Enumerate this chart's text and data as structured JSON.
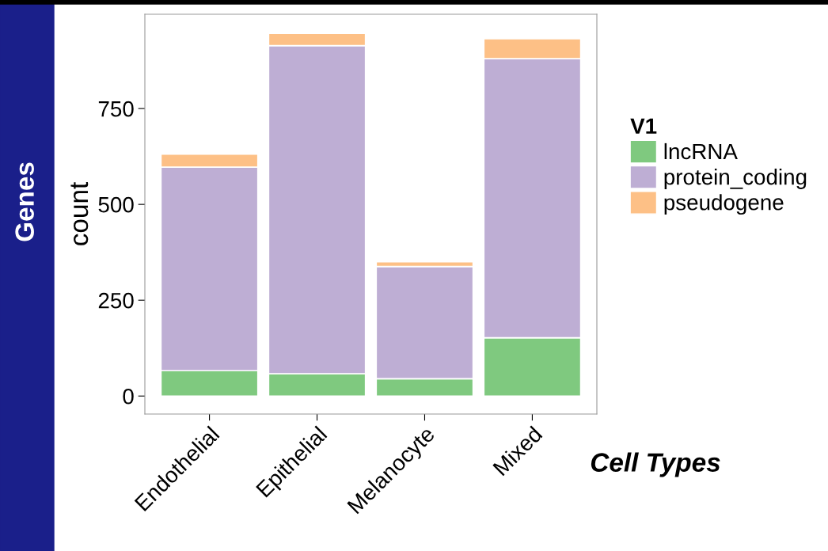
{
  "chart_data": {
    "type": "bar",
    "stacked": true,
    "ylabel": "count",
    "legend_title": "V1",
    "categories": [
      "Endothelial",
      "Epithelial",
      "Melanocyte",
      "Mixed"
    ],
    "series": [
      {
        "name": "lncRNA",
        "color": "#7fc97f",
        "values": [
          66,
          58,
          45,
          152
        ]
      },
      {
        "name": "protein_coding",
        "color": "#beaed4",
        "values": [
          531,
          856,
          293,
          728
        ]
      },
      {
        "name": "pseudogene",
        "color": "#fdc086",
        "values": [
          34,
          32,
          12,
          52
        ]
      }
    ],
    "ylim": [
      -47,
      996
    ],
    "yticks": [
      0,
      250,
      500,
      750
    ],
    "grid": false,
    "legend": "right",
    "annotations": [
      "Genes",
      "Cell Types"
    ]
  }
}
